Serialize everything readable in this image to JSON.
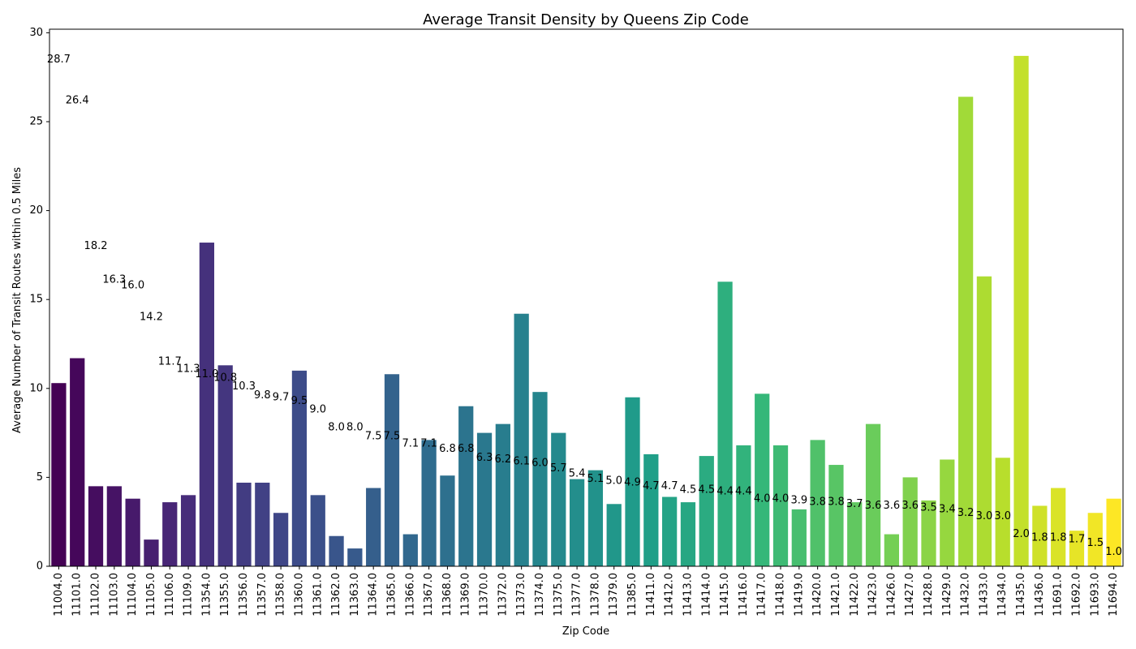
{
  "chart_data": {
    "type": "bar",
    "title": "Average Transit Density by Queens Zip Code",
    "xlabel": "Zip Code",
    "ylabel": "Average Number of Transit Routes within 0.5 Miles",
    "ylim": [
      0,
      30
    ],
    "yticks": [
      "0",
      "5",
      "10",
      "15",
      "20",
      "25",
      "30"
    ],
    "grid": false,
    "palette": "viridis",
    "categories": [
      "11004.0",
      "11101.0",
      "11102.0",
      "11103.0",
      "11104.0",
      "11105.0",
      "11106.0",
      "11109.0",
      "11354.0",
      "11355.0",
      "11356.0",
      "11357.0",
      "11358.0",
      "11360.0",
      "11361.0",
      "11362.0",
      "11363.0",
      "11364.0",
      "11365.0",
      "11366.0",
      "11367.0",
      "11368.0",
      "11369.0",
      "11370.0",
      "11372.0",
      "11373.0",
      "11374.0",
      "11375.0",
      "11377.0",
      "11378.0",
      "11379.0",
      "11385.0",
      "11411.0",
      "11412.0",
      "11413.0",
      "11414.0",
      "11415.0",
      "11416.0",
      "11417.0",
      "11418.0",
      "11419.0",
      "11420.0",
      "11421.0",
      "11422.0",
      "11423.0",
      "11426.0",
      "11427.0",
      "11428.0",
      "11429.0",
      "11432.0",
      "11433.0",
      "11434.0",
      "11435.0",
      "11436.0",
      "11691.0",
      "11692.0",
      "11693.0",
      "11694.0"
    ],
    "values": [
      10.3,
      11.7,
      4.5,
      4.5,
      3.8,
      1.5,
      3.6,
      4.0,
      18.2,
      11.3,
      4.7,
      4.7,
      3.0,
      11.0,
      4.0,
      1.7,
      1.0,
      4.4,
      10.8,
      1.8,
      7.1,
      5.1,
      9.0,
      7.5,
      8.0,
      14.2,
      9.8,
      7.5,
      4.9,
      5.4,
      3.5,
      9.5,
      6.3,
      3.9,
      3.6,
      6.2,
      16.0,
      6.8,
      9.7,
      6.8,
      3.2,
      7.1,
      5.7,
      3.6,
      8.0,
      1.8,
      5.0,
      3.7,
      6.0,
      26.4,
      16.3,
      6.1,
      28.7,
      3.4,
      4.4,
      2.0,
      3.0,
      3.8
    ],
    "bar_labels": [
      "28.7",
      "26.4",
      "18.2",
      "16.3",
      "16.0",
      "14.2",
      "11.7",
      "11.3",
      "11.0",
      "10.8",
      "10.3",
      "9.8",
      "9.7",
      "9.5",
      "9.0",
      "8.0",
      "8.0",
      "7.5",
      "7.5",
      "7.1",
      "7.1",
      "6.8",
      "6.8",
      "6.3",
      "6.2",
      "6.1",
      "6.0",
      "5.7",
      "5.4",
      "5.1",
      "5.0",
      "4.9",
      "4.7",
      "4.7",
      "4.5",
      "4.5",
      "4.4",
      "4.4",
      "4.0",
      "4.0",
      "3.9",
      "3.8",
      "3.8",
      "3.7",
      "3.6",
      "3.6",
      "3.6",
      "3.5",
      "3.4",
      "3.2",
      "3.0",
      "3.0",
      "2.0",
      "1.8",
      "1.8",
      "1.7",
      "1.5",
      "1.0"
    ]
  }
}
